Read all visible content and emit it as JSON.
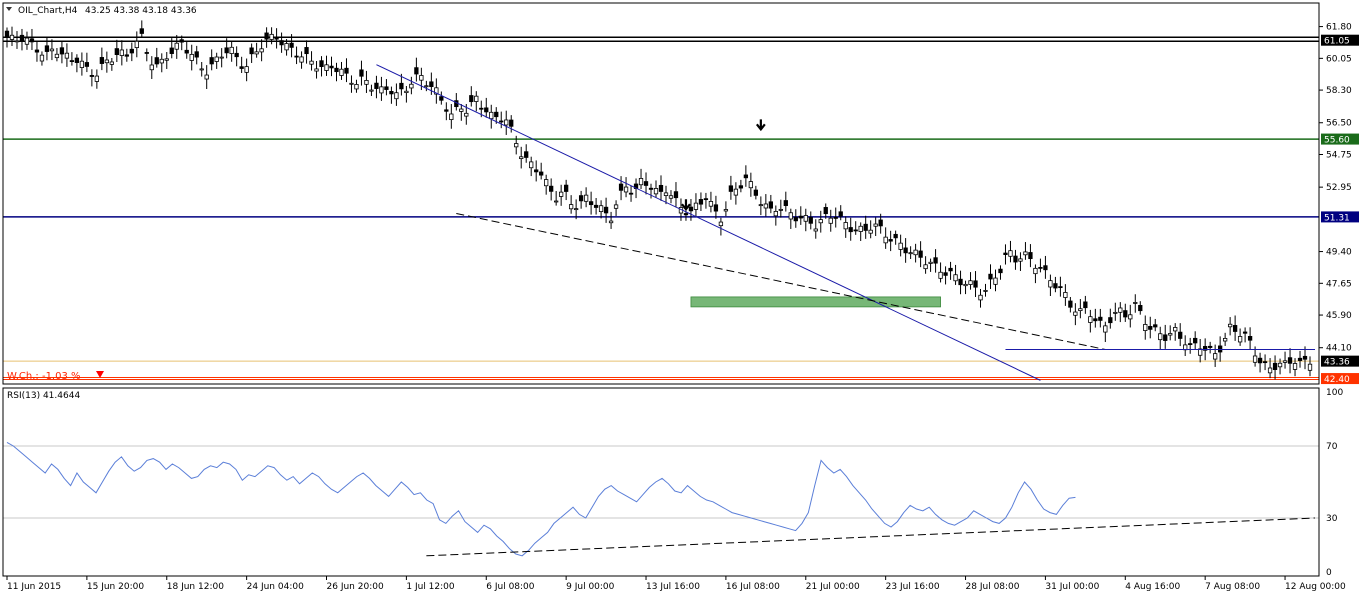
{
  "header": {
    "symbol": "OIL_Chart,H4",
    "ohlc": "43.25 43.38 43.18 43.36",
    "rsi_title": "RSI(13) 41.4644",
    "weekly_change": "W.Ch.: -1.03 %"
  },
  "chart_data": [
    {
      "type": "candlestick",
      "title": "OIL_Chart,H4",
      "timeframe": "H4",
      "last_quote": {
        "open": 43.25,
        "high": 43.38,
        "low": 43.18,
        "close": 43.36
      },
      "y_ticks": [
        61.8,
        60.05,
        58.3,
        56.5,
        54.75,
        52.95,
        49.4,
        47.65,
        45.9,
        44.1
      ],
      "y_tick_labels": [
        "61.80",
        "60.05",
        "58.30",
        "56.50",
        "54.75",
        "52.95",
        "49.40",
        "47.65",
        "45.90",
        "44.10"
      ],
      "ylim": [
        42.1,
        63.1
      ],
      "x_labels": [
        "11 Jun 2015",
        "15 Jun 20:00",
        "18 Jun 12:00",
        "24 Jun 04:00",
        "26 Jun 20:00",
        "1 Jul 12:00",
        "6 Jul 08:00",
        "9 Jul 00:00",
        "13 Jul 16:00",
        "16 Jul 08:00",
        "21 Jul 00:00",
        "23 Jul 16:00",
        "28 Jul 08:00",
        "31 Jul 00:00",
        "4 Aug 16:00",
        "7 Aug 08:00",
        "12 Aug 00:00"
      ],
      "x_label_bar_index": [
        0,
        16,
        32,
        48,
        64,
        80,
        96,
        112,
        128,
        144,
        160,
        176,
        192,
        208,
        224,
        240,
        256
      ],
      "level_lines": [
        {
          "price": 61.05,
          "label": "61.05",
          "color": "#000000"
        },
        {
          "price": 55.6,
          "label": "55.60",
          "color": "#1a6b1a"
        },
        {
          "price": 51.31,
          "label": "51.31",
          "color": "#000080"
        },
        {
          "price": 42.4,
          "label": "42.40",
          "color": "#ff3300"
        },
        {
          "price": 43.36,
          "label": "43.36",
          "color": "#000000"
        }
      ],
      "close_series": [
        61.2,
        61.0,
        61.3,
        60.8,
        60.5,
        60.2,
        60.6,
        60.3,
        59.9,
        60.1,
        59.4,
        59.1,
        59.6,
        60.0,
        60.4,
        60.1,
        60.8,
        61.2,
        60.0,
        59.5,
        60.2,
        60.5,
        60.9,
        60.4,
        59.8,
        59.3,
        59.7,
        60.3,
        60.6,
        60.0,
        59.5,
        60.2,
        60.8,
        61.1,
        61.3,
        60.7,
        60.5,
        60.2,
        60.0,
        59.7,
        59.4,
        59.7,
        59.3,
        59.0,
        58.7,
        58.9,
        58.5,
        58.2,
        58.5,
        58.0,
        58.3,
        58.8,
        59.1,
        58.7,
        58.2,
        57.6,
        56.8,
        57.5,
        57.1,
        57.9,
        57.3,
        56.8,
        56.9,
        56.5,
        55.6,
        54.5,
        54.2,
        53.9,
        53.0,
        52.4,
        52.7,
        52.1,
        51.9,
        52.4,
        52.0,
        51.6,
        51.3,
        52.3,
        53.1,
        52.6,
        53.4,
        53.0,
        52.5,
        52.9,
        52.2,
        51.8,
        51.5,
        52.0,
        52.5,
        51.6,
        51.2,
        52.4,
        53.0,
        53.4,
        52.8,
        52.1,
        51.6,
        51.9,
        51.7,
        51.4,
        51.2,
        51.1,
        50.8,
        51.3,
        51.5,
        51.1,
        50.8,
        50.5,
        50.6,
        50.9,
        50.6,
        50.2,
        49.9,
        49.6,
        49.3,
        49.1,
        48.8,
        48.5,
        48.3,
        48.1,
        47.8,
        47.6,
        47.4,
        47.1,
        47.8,
        48.4,
        49.4,
        49.0,
        49.2,
        48.9,
        48.5,
        48.0,
        47.6,
        47.1,
        46.4,
        46.0,
        46.3,
        45.6,
        45.2,
        45.8,
        46.1,
        45.9,
        46.4,
        45.8,
        45.1,
        44.9,
        44.7,
        45.0,
        44.6,
        44.1,
        44.3,
        44.0,
        43.7,
        44.3,
        45.2,
        45.0,
        44.7,
        43.9,
        43.2,
        42.9,
        43.3,
        43.1,
        43.5,
        43.2,
        43.36
      ]
    },
    {
      "type": "line",
      "title": "RSI(13) 41.4644",
      "ylim": [
        0,
        100
      ],
      "y_ticks": [
        0,
        30,
        70,
        100
      ],
      "y_tick_labels": [
        "0",
        "30",
        "70",
        "100"
      ],
      "levels": [
        30,
        70
      ],
      "last_value": 41.4644,
      "values": [
        72,
        70,
        67,
        64,
        61,
        58,
        55,
        60,
        57,
        52,
        48,
        55,
        50,
        47,
        44,
        50,
        56,
        61,
        64,
        59,
        56,
        58,
        62,
        63,
        61,
        57,
        60,
        58,
        55,
        52,
        53,
        57,
        59,
        58,
        61,
        60,
        57,
        51,
        54,
        53,
        56,
        59,
        58,
        54,
        51,
        53,
        49,
        52,
        55,
        53,
        49,
        46,
        44,
        47,
        50,
        53,
        55,
        52,
        48,
        45,
        42,
        46,
        50,
        47,
        43,
        44,
        40,
        38,
        29,
        27,
        31,
        34,
        28,
        25,
        22,
        26,
        24,
        20,
        17,
        13,
        10,
        9,
        12,
        16,
        19,
        22,
        27,
        30,
        33,
        36,
        32,
        30,
        36,
        42,
        46,
        48,
        45,
        43,
        41,
        39,
        43,
        47,
        50,
        52,
        49,
        45,
        44,
        48,
        45,
        42,
        40,
        39,
        37,
        35,
        33,
        32,
        31,
        30,
        29,
        28,
        27,
        26,
        25,
        24,
        23,
        27,
        33,
        48,
        62,
        58,
        55,
        57,
        53,
        48,
        44,
        40,
        35,
        31,
        27,
        25,
        28,
        33,
        37,
        35,
        34,
        36,
        32,
        29,
        27,
        26,
        28,
        30,
        34,
        32,
        30,
        28,
        27,
        30,
        36,
        44,
        50,
        46,
        40,
        35,
        33,
        32,
        37,
        41,
        41.46
      ],
      "support_line": {
        "from_bar": 84,
        "to_bar": 262,
        "from_value": 9,
        "to_value": 30
      }
    }
  ],
  "colors": {
    "up_candle": "#ffffff",
    "down_candle": "#000000",
    "trendline": "#1a1aa8",
    "rsi_line": "#5b7fd8",
    "zone": "#5faa5f",
    "grid": "#c8c8c8",
    "arrow_down": "#ff0000"
  },
  "axis_badges": {
    "level_61": "61.05",
    "level_55": "55.60",
    "level_51": "51.31",
    "current": "43.36",
    "level_42": "42.40"
  }
}
